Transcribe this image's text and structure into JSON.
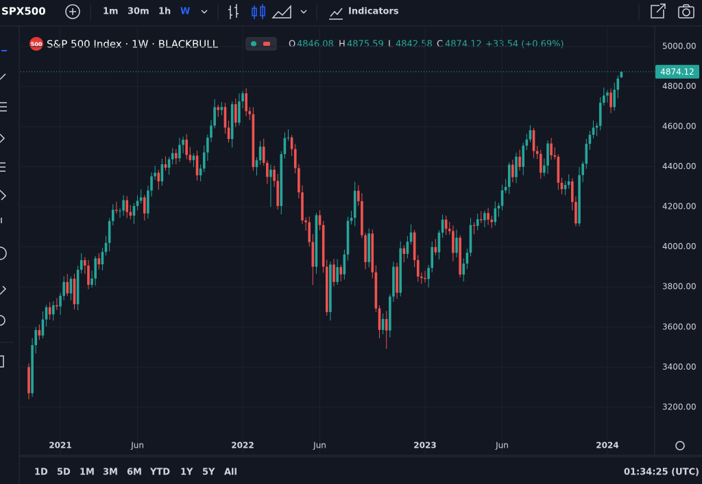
{
  "toolbar": {
    "symbol": "SPX500",
    "intervals": [
      "1m",
      "30m",
      "1h",
      "W"
    ],
    "indicators": "Indicators"
  },
  "legend": {
    "badge": "500",
    "title": "S&P 500 Index · 1W · BLACKBULL",
    "o": "O",
    "h": "H",
    "l": "L",
    "c": "C",
    "change": "+33.54 (+0.69%)"
  },
  "chart_data": {
    "type": "candlestick",
    "up_color": "#26a69a",
    "down_color": "#ef5350",
    "grid": true,
    "ylim": [
      3063,
      5078
    ],
    "yticks": [
      {
        "value": 3200,
        "label": "3200.00"
      },
      {
        "value": 3400,
        "label": "3400.00"
      },
      {
        "value": 3600,
        "label": "3600.00"
      },
      {
        "value": 3800,
        "label": "3800.00"
      },
      {
        "value": 4000,
        "label": "4000.00"
      },
      {
        "value": 4200,
        "label": "4200.00"
      },
      {
        "value": 4400,
        "label": "4400.00"
      },
      {
        "value": 4600,
        "label": "4600.00"
      },
      {
        "value": 4800,
        "label": "4800.00"
      },
      {
        "value": 5000,
        "label": "5000.00"
      }
    ],
    "xticks": [
      {
        "value": 9,
        "label": "2021"
      },
      {
        "value": 31,
        "label": "Jun"
      },
      {
        "value": 61,
        "label": "2022"
      },
      {
        "value": 83,
        "label": "Jun"
      },
      {
        "value": 113,
        "label": "2023"
      },
      {
        "value": 135,
        "label": "Jun"
      },
      {
        "value": 165,
        "label": "2024"
      }
    ],
    "ohlc": [
      [
        3400,
        3420,
        3240,
        3270
      ],
      [
        3270,
        3545,
        3252,
        3510
      ],
      [
        3510,
        3600,
        3468,
        3585
      ],
      [
        3585,
        3613,
        3536,
        3558
      ],
      [
        3558,
        3678,
        3544,
        3638
      ],
      [
        3638,
        3711,
        3603,
        3699
      ],
      [
        3699,
        3724,
        3637,
        3663
      ],
      [
        3663,
        3729,
        3633,
        3709
      ],
      [
        3709,
        3744,
        3685,
        3703
      ],
      [
        3703,
        3771,
        3661,
        3756
      ],
      [
        3756,
        3853,
        3734,
        3825
      ],
      [
        3825,
        3865,
        3754,
        3768
      ],
      [
        3768,
        3853,
        3733,
        3841
      ],
      [
        3841,
        3866,
        3688,
        3714
      ],
      [
        3714,
        3906,
        3684,
        3886
      ],
      [
        3886,
        3969,
        3868,
        3934
      ],
      [
        3934,
        3949,
        3865,
        3907
      ],
      [
        3907,
        3935,
        3789,
        3811
      ],
      [
        3811,
        3882,
        3797,
        3842
      ],
      [
        3842,
        3955,
        3807,
        3943
      ],
      [
        3943,
        3968,
        3887,
        3913
      ],
      [
        3913,
        3995,
        3883,
        3975
      ],
      [
        3975,
        4055,
        3957,
        4020
      ],
      [
        4020,
        4144,
        3978,
        4129
      ],
      [
        4129,
        4213,
        4107,
        4185
      ],
      [
        4185,
        4225,
        4166,
        4180
      ],
      [
        4180,
        4193,
        4145,
        4181
      ],
      [
        4181,
        4258,
        4155,
        4233
      ],
      [
        4233,
        4253,
        4144,
        4174
      ],
      [
        4174,
        4209,
        4138,
        4156
      ],
      [
        4156,
        4219,
        4114,
        4204
      ],
      [
        4204,
        4258,
        4182,
        4230
      ],
      [
        4230,
        4287,
        4216,
        4247
      ],
      [
        4247,
        4259,
        4132,
        4167
      ],
      [
        4167,
        4306,
        4141,
        4281
      ],
      [
        4281,
        4372,
        4251,
        4352
      ],
      [
        4352,
        4405,
        4334,
        4370
      ],
      [
        4370,
        4385,
        4285,
        4327
      ],
      [
        4327,
        4440,
        4305,
        4412
      ],
      [
        4412,
        4452,
        4381,
        4395
      ],
      [
        4395,
        4449,
        4360,
        4437
      ],
      [
        4437,
        4493,
        4411,
        4468
      ],
      [
        4468,
        4488,
        4412,
        4442
      ],
      [
        4442,
        4544,
        4424,
        4509
      ],
      [
        4509,
        4550,
        4467,
        4535
      ],
      [
        4535,
        4563,
        4437,
        4459
      ],
      [
        4459,
        4499,
        4419,
        4433
      ],
      [
        4433,
        4467,
        4398,
        4455
      ],
      [
        4455,
        4480,
        4331,
        4357
      ],
      [
        4357,
        4411,
        4327,
        4391
      ],
      [
        4391,
        4506,
        4373,
        4471
      ],
      [
        4471,
        4560,
        4429,
        4545
      ],
      [
        4545,
        4633,
        4523,
        4605
      ],
      [
        4605,
        4737,
        4591,
        4697
      ],
      [
        4697,
        4709,
        4648,
        4683
      ],
      [
        4683,
        4723,
        4657,
        4698
      ],
      [
        4698,
        4718,
        4565,
        4595
      ],
      [
        4595,
        4630,
        4520,
        4538
      ],
      [
        4538,
        4727,
        4496,
        4712
      ],
      [
        4712,
        4740,
        4598,
        4620
      ],
      [
        4620,
        4766,
        4606,
        4726
      ],
      [
        4726,
        4778,
        4691,
        4766
      ],
      [
        4766,
        4791,
        4651,
        4677
      ],
      [
        4677,
        4697,
        4632,
        4662
      ],
      [
        4662,
        4697,
        4380,
        4398
      ],
      [
        4398,
        4447,
        4356,
        4432
      ],
      [
        4432,
        4528,
        4410,
        4500
      ],
      [
        4500,
        4540,
        4405,
        4419
      ],
      [
        4419,
        4431,
        4314,
        4349
      ],
      [
        4349,
        4410,
        4200,
        4385
      ],
      [
        4385,
        4405,
        4299,
        4329
      ],
      [
        4329,
        4364,
        4186,
        4204
      ],
      [
        4204,
        4478,
        4162,
        4463
      ],
      [
        4463,
        4571,
        4441,
        4543
      ],
      [
        4543,
        4586,
        4529,
        4546
      ],
      [
        4546,
        4558,
        4453,
        4488
      ],
      [
        4488,
        4513,
        4367,
        4393
      ],
      [
        4393,
        4413,
        4242,
        4272
      ],
      [
        4272,
        4307,
        4114,
        4132
      ],
      [
        4132,
        4147,
        4081,
        4123
      ],
      [
        4123,
        4151,
        4002,
        4024
      ],
      [
        4024,
        4064,
        3810,
        3901
      ],
      [
        3901,
        4170,
        3866,
        4158
      ],
      [
        4158,
        4183,
        4083,
        4109
      ],
      [
        4109,
        4129,
        3871,
        3901
      ],
      [
        3901,
        3936,
        3657,
        3675
      ],
      [
        3675,
        3927,
        3633,
        3912
      ],
      [
        3912,
        3940,
        3803,
        3825
      ],
      [
        3825,
        3939,
        3811,
        3899
      ],
      [
        3899,
        3911,
        3828,
        3863
      ],
      [
        3863,
        3987,
        3837,
        3962
      ],
      [
        3962,
        4150,
        3932,
        4130
      ],
      [
        4130,
        4180,
        4112,
        4145
      ],
      [
        4145,
        4325,
        4103,
        4280
      ],
      [
        4280,
        4308,
        4206,
        4228
      ],
      [
        4228,
        4268,
        4044,
        4058
      ],
      [
        4058,
        4070,
        3889,
        3924
      ],
      [
        3924,
        4092,
        3898,
        4067
      ],
      [
        4067,
        4087,
        3843,
        3873
      ],
      [
        3873,
        3908,
        3675,
        3693
      ],
      [
        3693,
        3708,
        3544,
        3586
      ],
      [
        3586,
        3668,
        3564,
        3640
      ],
      [
        3640,
        3680,
        3491,
        3583
      ],
      [
        3583,
        3764,
        3548,
        3752
      ],
      [
        3752,
        3926,
        3726,
        3901
      ],
      [
        3901,
        3921,
        3741,
        3771
      ],
      [
        3771,
        4028,
        3753,
        3993
      ],
      [
        3993,
        4008,
        3923,
        3965
      ],
      [
        3965,
        4054,
        3943,
        4026
      ],
      [
        4026,
        4112,
        4012,
        4072
      ],
      [
        4072,
        4084,
        3899,
        3934
      ],
      [
        3934,
        3959,
        3826,
        3852
      ],
      [
        3852,
        3872,
        3815,
        3845
      ],
      [
        3845,
        3880,
        3822,
        3840
      ],
      [
        3840,
        3910,
        3798,
        3895
      ],
      [
        3895,
        4027,
        3873,
        3999
      ],
      [
        3999,
        4039,
        3959,
        3973
      ],
      [
        3973,
        4083,
        3938,
        4071
      ],
      [
        4071,
        4161,
        4045,
        4136
      ],
      [
        4136,
        4156,
        4060,
        4090
      ],
      [
        4090,
        4125,
        4061,
        4079
      ],
      [
        4079,
        4107,
        3928,
        3970
      ],
      [
        3970,
        4086,
        3948,
        4046
      ],
      [
        4046,
        4058,
        3848,
        3862
      ],
      [
        3862,
        3942,
        3827,
        3917
      ],
      [
        3917,
        3991,
        3889,
        3971
      ],
      [
        3971,
        4144,
        3953,
        4109
      ],
      [
        4109,
        4124,
        4063,
        4105
      ],
      [
        4105,
        4166,
        4083,
        4138
      ],
      [
        4138,
        4178,
        4119,
        4133
      ],
      [
        4133,
        4181,
        4098,
        4169
      ],
      [
        4169,
        4194,
        4110,
        4136
      ],
      [
        4136,
        4156,
        4094,
        4124
      ],
      [
        4124,
        4227,
        4106,
        4192
      ],
      [
        4192,
        4220,
        4150,
        4205
      ],
      [
        4205,
        4310,
        4183,
        4282
      ],
      [
        4282,
        4339,
        4268,
        4299
      ],
      [
        4299,
        4422,
        4264,
        4410
      ],
      [
        4410,
        4435,
        4322,
        4348
      ],
      [
        4348,
        4470,
        4318,
        4450
      ],
      [
        4450,
        4485,
        4381,
        4399
      ],
      [
        4399,
        4520,
        4357,
        4505
      ],
      [
        4505,
        4564,
        4483,
        4536
      ],
      [
        4536,
        4607,
        4522,
        4582
      ],
      [
        4582,
        4594,
        4443,
        4478
      ],
      [
        4478,
        4503,
        4438,
        4464
      ],
      [
        4464,
        4484,
        4340,
        4370
      ],
      [
        4370,
        4441,
        4352,
        4406
      ],
      [
        4406,
        4531,
        4364,
        4516
      ],
      [
        4516,
        4544,
        4435,
        4457
      ],
      [
        4457,
        4497,
        4436,
        4450
      ],
      [
        4450,
        4462,
        4285,
        4320
      ],
      [
        4320,
        4345,
        4262,
        4288
      ],
      [
        4288,
        4329,
        4258,
        4309
      ],
      [
        4309,
        4362,
        4291,
        4327
      ],
      [
        4327,
        4342,
        4182,
        4224
      ],
      [
        4224,
        4252,
        4103,
        4117
      ],
      [
        4117,
        4398,
        4103,
        4358
      ],
      [
        4358,
        4427,
        4323,
        4415
      ],
      [
        4415,
        4539,
        4389,
        4514
      ],
      [
        4514,
        4579,
        4484,
        4559
      ],
      [
        4559,
        4630,
        4541,
        4595
      ],
      [
        4595,
        4619,
        4553,
        4604
      ],
      [
        4604,
        4747,
        4582,
        4719
      ],
      [
        4719,
        4795,
        4705,
        4755
      ],
      [
        4755,
        4782,
        4720,
        4770
      ],
      [
        4770,
        4790,
        4667,
        4697
      ],
      [
        4697,
        4819,
        4679,
        4784
      ],
      [
        4784,
        4855,
        4742,
        4840
      ],
      [
        4846.08,
        4875.59,
        4842.58,
        4874.12
      ]
    ]
  },
  "bottom_bar": {
    "ranges": [
      "1D",
      "5D",
      "1M",
      "3M",
      "6M",
      "YTD",
      "1Y",
      "5Y",
      "All"
    ],
    "clock": "01:34:25 (UTC)"
  }
}
